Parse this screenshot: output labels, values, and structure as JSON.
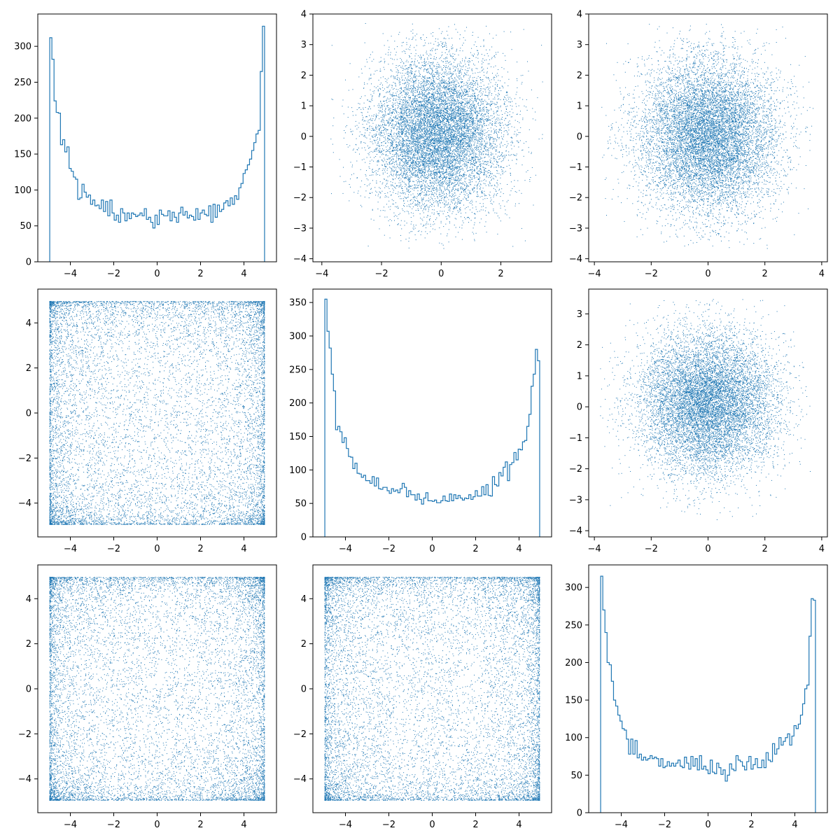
{
  "chart_data": {
    "type": "pairplot",
    "layout": "3x3",
    "color": "#1f77b4",
    "background": "#ffffff",
    "grid": false,
    "variables": [
      "",
      "",
      ""
    ],
    "panels": [
      {
        "id": "p00",
        "row": 0,
        "col": 0,
        "type": "histogram",
        "variable_index": 0,
        "bins": 100,
        "bin_range": [
          -4.95,
          4.95
        ],
        "xlim": [
          -5.5,
          5.5
        ],
        "ylim": [
          0,
          345
        ],
        "xticks": [
          -4,
          -2,
          0,
          2,
          4
        ],
        "yticks": [
          0,
          50,
          100,
          150,
          200,
          250,
          300
        ],
        "xtick_labels": [
          "−4",
          "−2",
          "0",
          "2",
          "4"
        ],
        "ytick_labels": [
          "0",
          "50",
          "100",
          "150",
          "200",
          "250",
          "300"
        ],
        "counts": [
          312,
          282,
          224,
          208,
          207,
          163,
          170,
          153,
          160,
          130,
          126,
          118,
          115,
          87,
          89,
          108,
          97,
          90,
          93,
          80,
          86,
          78,
          79,
          74,
          86,
          70,
          84,
          64,
          86,
          68,
          58,
          65,
          55,
          74,
          68,
          57,
          68,
          60,
          68,
          66,
          63,
          65,
          68,
          64,
          74,
          59,
          62,
          55,
          47,
          65,
          52,
          72,
          66,
          64,
          64,
          71,
          57,
          69,
          62,
          55,
          68,
          76,
          65,
          70,
          61,
          65,
          63,
          58,
          74,
          59,
          68,
          72,
          66,
          64,
          78,
          55,
          80,
          62,
          79,
          70,
          73,
          82,
          85,
          78,
          89,
          80,
          92,
          87,
          103,
          109,
          123,
          128,
          135,
          143,
          155,
          166,
          178,
          183,
          265,
          328
        ]
      },
      {
        "id": "p01",
        "row": 0,
        "col": 1,
        "type": "scatter",
        "x_variable_index": 1,
        "y_variable_index": 0,
        "distribution": "gaussian-like disc",
        "n_points": 10000,
        "x_center": -0.1,
        "y_center": 0.1,
        "x_sd": 1.1,
        "y_sd": 1.25,
        "x_clip": [
          -3.7,
          3.4
        ],
        "y_clip": [
          -3.7,
          3.7
        ],
        "xlim": [
          -4.3,
          3.7
        ],
        "ylim": [
          -4.1,
          4.0
        ],
        "xticks": [
          -4,
          -2,
          0,
          2
        ],
        "yticks": [
          -4,
          -3,
          -2,
          -1,
          0,
          1,
          2,
          3,
          4
        ],
        "xtick_labels": [
          "−4",
          "−2",
          "0",
          "2"
        ],
        "ytick_labels": [
          "−4",
          "−3",
          "−2",
          "−1",
          "0",
          "1",
          "2",
          "3",
          "4"
        ]
      },
      {
        "id": "p02",
        "row": 0,
        "col": 2,
        "type": "scatter",
        "x_variable_index": 2,
        "y_variable_index": 0,
        "distribution": "gaussian-like disc",
        "n_points": 10000,
        "x_center": 0.0,
        "y_center": 0.0,
        "x_sd": 1.2,
        "y_sd": 1.25,
        "x_clip": [
          -3.8,
          3.7
        ],
        "y_clip": [
          -3.7,
          3.7
        ],
        "xlim": [
          -4.2,
          4.2
        ],
        "ylim": [
          -4.1,
          4.0
        ],
        "xticks": [
          -4,
          -2,
          0,
          2,
          4
        ],
        "yticks": [
          -4,
          -3,
          -2,
          -1,
          0,
          1,
          2,
          3,
          4
        ],
        "xtick_labels": [
          "−4",
          "−2",
          "0",
          "2",
          "4"
        ],
        "ytick_labels": [
          "−4",
          "−3",
          "−2",
          "−1",
          "0",
          "1",
          "2",
          "3",
          "4"
        ]
      },
      {
        "id": "p10",
        "row": 1,
        "col": 0,
        "type": "scatter",
        "x_variable_index": 0,
        "y_variable_index": 1,
        "distribution": "uniform square, denser near edges",
        "n_points": 10000,
        "x_range": [
          -4.95,
          4.95
        ],
        "y_range": [
          -4.95,
          4.95
        ],
        "xlim": [
          -5.5,
          5.5
        ],
        "ylim": [
          -5.5,
          5.5
        ],
        "xticks": [
          -4,
          -2,
          0,
          2,
          4
        ],
        "yticks": [
          -4,
          -2,
          0,
          2,
          4
        ],
        "xtick_labels": [
          "−4",
          "−2",
          "0",
          "2",
          "4"
        ],
        "ytick_labels": [
          "−4",
          "−2",
          "0",
          "2",
          "4"
        ]
      },
      {
        "id": "p11",
        "row": 1,
        "col": 1,
        "type": "histogram",
        "variable_index": 1,
        "bins": 100,
        "bin_range": [
          -4.95,
          4.95
        ],
        "xlim": [
          -5.5,
          5.5
        ],
        "ylim": [
          0,
          370
        ],
        "xticks": [
          -4,
          -2,
          0,
          2,
          4
        ],
        "yticks": [
          0,
          50,
          100,
          150,
          200,
          250,
          300,
          350
        ],
        "xtick_labels": [
          "−4",
          "−2",
          "0",
          "2",
          "4"
        ],
        "ytick_labels": [
          "0",
          "50",
          "100",
          "150",
          "200",
          "250",
          "300",
          "350"
        ],
        "counts": [
          355,
          307,
          282,
          243,
          218,
          160,
          165,
          157,
          141,
          148,
          132,
          120,
          119,
          102,
          110,
          95,
          94,
          89,
          92,
          84,
          84,
          80,
          90,
          76,
          88,
          72,
          71,
          74,
          74,
          69,
          65,
          72,
          68,
          70,
          66,
          72,
          80,
          74,
          60,
          69,
          63,
          63,
          55,
          64,
          56,
          49,
          58,
          66,
          54,
          54,
          53,
          55,
          51,
          51,
          54,
          61,
          54,
          53,
          64,
          54,
          63,
          57,
          62,
          58,
          55,
          58,
          57,
          63,
          56,
          60,
          69,
          61,
          61,
          75,
          63,
          78,
          62,
          61,
          90,
          78,
          76,
          96,
          91,
          104,
          112,
          84,
          108,
          111,
          126,
          115,
          131,
          130,
          142,
          144,
          165,
          183,
          225,
          243,
          280,
          263
        ]
      },
      {
        "id": "p12",
        "row": 1,
        "col": 2,
        "type": "scatter",
        "x_variable_index": 2,
        "y_variable_index": 1,
        "distribution": "gaussian-like disc",
        "n_points": 10000,
        "x_center": 0.0,
        "y_center": 0.1,
        "x_sd": 1.2,
        "y_sd": 1.15,
        "x_clip": [
          -3.8,
          3.6
        ],
        "y_clip": [
          -3.7,
          3.5
        ],
        "xlim": [
          -4.2,
          4.2
        ],
        "ylim": [
          -4.2,
          3.8
        ],
        "xticks": [
          -4,
          -2,
          0,
          2,
          4
        ],
        "yticks": [
          -4,
          -3,
          -2,
          -1,
          0,
          1,
          2,
          3
        ],
        "xtick_labels": [
          "−4",
          "−2",
          "0",
          "2",
          "4"
        ],
        "ytick_labels": [
          "−4",
          "−3",
          "−2",
          "−1",
          "0",
          "1",
          "2",
          "3"
        ]
      },
      {
        "id": "p20",
        "row": 2,
        "col": 0,
        "type": "scatter",
        "x_variable_index": 0,
        "y_variable_index": 2,
        "distribution": "uniform square, denser near edges",
        "n_points": 10000,
        "x_range": [
          -4.95,
          4.95
        ],
        "y_range": [
          -4.95,
          4.95
        ],
        "xlim": [
          -5.5,
          5.5
        ],
        "ylim": [
          -5.5,
          5.5
        ],
        "xticks": [
          -4,
          -2,
          0,
          2,
          4
        ],
        "yticks": [
          -4,
          -2,
          0,
          2,
          4
        ],
        "xtick_labels": [
          "−4",
          "−2",
          "0",
          "2",
          "4"
        ],
        "ytick_labels": [
          "−4",
          "−2",
          "0",
          "2",
          "4"
        ]
      },
      {
        "id": "p21",
        "row": 2,
        "col": 1,
        "type": "scatter",
        "x_variable_index": 1,
        "y_variable_index": 2,
        "distribution": "uniform square, denser near edges",
        "n_points": 10000,
        "x_range": [
          -4.95,
          4.95
        ],
        "y_range": [
          -4.95,
          4.95
        ],
        "xlim": [
          -5.5,
          5.5
        ],
        "ylim": [
          -5.5,
          5.5
        ],
        "xticks": [
          -4,
          -2,
          0,
          2,
          4
        ],
        "yticks": [
          -4,
          -2,
          0,
          2,
          4
        ],
        "xtick_labels": [
          "−4",
          "−2",
          "0",
          "2",
          "4"
        ],
        "ytick_labels": [
          "−4",
          "−2",
          "0",
          "2",
          "4"
        ]
      },
      {
        "id": "p22",
        "row": 2,
        "col": 2,
        "type": "histogram",
        "variable_index": 2,
        "bins": 100,
        "bin_range": [
          -4.95,
          4.95
        ],
        "xlim": [
          -5.5,
          5.5
        ],
        "ylim": [
          0,
          330
        ],
        "xticks": [
          -4,
          -2,
          0,
          2,
          4
        ],
        "yticks": [
          0,
          50,
          100,
          150,
          200,
          250,
          300
        ],
        "xtick_labels": [
          "−4",
          "−2",
          "0",
          "2",
          "4"
        ],
        "ytick_labels": [
          "0",
          "50",
          "100",
          "150",
          "200",
          "250",
          "300"
        ],
        "counts": [
          315,
          270,
          240,
          200,
          197,
          175,
          150,
          142,
          130,
          122,
          112,
          110,
          98,
          78,
          98,
          78,
          96,
          73,
          78,
          70,
          74,
          70,
          72,
          76,
          72,
          74,
          72,
          62,
          72,
          60,
          62,
          68,
          62,
          66,
          62,
          66,
          70,
          62,
          60,
          74,
          66,
          58,
          75,
          62,
          72,
          57,
          76,
          58,
          62,
          57,
          52,
          70,
          54,
          52,
          66,
          60,
          51,
          57,
          42,
          50,
          65,
          58,
          56,
          76,
          70,
          68,
          62,
          57,
          68,
          75,
          58,
          64,
          72,
          60,
          60,
          70,
          60,
          80,
          70,
          68,
          92,
          78,
          85,
          100,
          90,
          95,
          100,
          105,
          90,
          102,
          116,
          112,
          118,
          130,
          145,
          165,
          170,
          235,
          285,
          283
        ]
      }
    ]
  }
}
